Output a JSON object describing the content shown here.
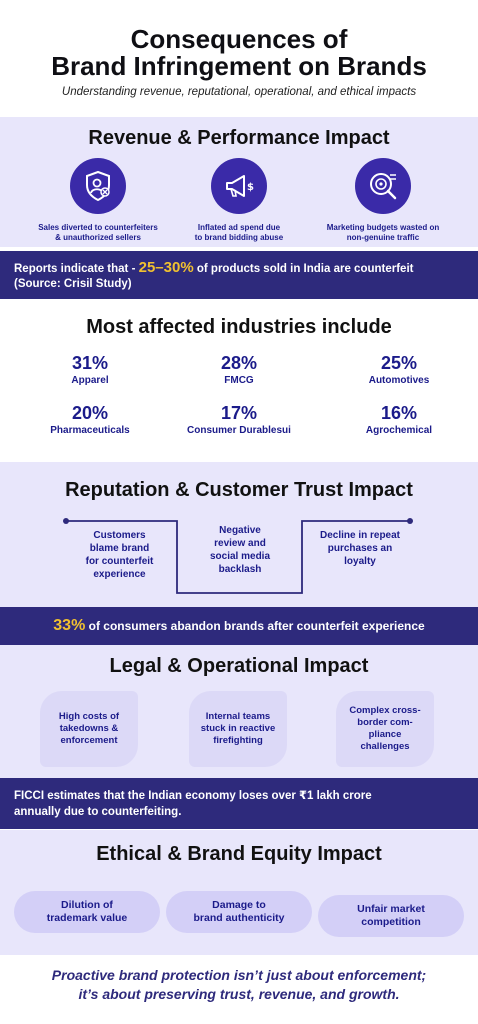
{
  "header": {
    "title_line1": "Consequences of",
    "title_line2": "Brand Infringement on Brands",
    "subtitle": "Understanding revenue, reputational, operational, and ethical impacts"
  },
  "revenue": {
    "title": "Revenue & Performance Impact",
    "items": [
      {
        "icon": "shield-user-icon",
        "caption_line1": "Sales diverted to counterfeiters",
        "caption_line2": "& unauthorized sellers"
      },
      {
        "icon": "megaphone-dollar-icon",
        "caption_line1": "Inflated ad spend due",
        "caption_line2": "to brand bidding abuse"
      },
      {
        "icon": "target-search-icon",
        "caption_line1": "Marketing budgets wasted on",
        "caption_line2": "non-genuine traffic"
      }
    ]
  },
  "crisil_banner": {
    "prefix": "Reports indicate that - ",
    "highlight": "25–30%",
    "suffix": " of products sold in India are counterfeit",
    "source": "(Source: Crisil Study)"
  },
  "industries": {
    "title": "Most affected industries include",
    "stats": [
      {
        "value": "31%",
        "label": "Apparel"
      },
      {
        "value": "28%",
        "label": "FMCG"
      },
      {
        "value": "25%",
        "label": "Automotives"
      },
      {
        "value": "20%",
        "label": "Pharmaceuticals"
      },
      {
        "value": "17%",
        "label": "Consumer Durablesui"
      },
      {
        "value": "16%",
        "label": "Agrochemical"
      }
    ]
  },
  "reputation": {
    "title": "Reputation & Customer Trust Impact",
    "items": [
      {
        "l1": "Customers",
        "l2": "blame brand",
        "l3": "for counterfeit",
        "l4": "experience"
      },
      {
        "l1": "Negative",
        "l2": "review and",
        "l3": "social media",
        "l4": "backlash"
      },
      {
        "l1": "Decline in repeat",
        "l2": "purchases an",
        "l3": "loyalty",
        "l4": ""
      }
    ]
  },
  "abandon_banner": {
    "highlight": "33%",
    "text": " of consumers abandon brands after counterfeit experience"
  },
  "legal": {
    "title": "Legal & Operational Impact",
    "items": [
      {
        "l1": "High costs of",
        "l2": "takedowns &",
        "l3": "enforcement",
        "l4": ""
      },
      {
        "l1": "Internal teams",
        "l2": "stuck in reactive",
        "l3": "firefighting",
        "l4": ""
      },
      {
        "l1": "Complex cross-",
        "l2": "border com-",
        "l3": "pliance",
        "l4": "challenges"
      }
    ]
  },
  "ficci_banner": {
    "line1": "FICCI estimates that the Indian economy loses over ₹1 lakh crore",
    "line2": "annually due to counterfeiting."
  },
  "ethical": {
    "title": "Ethical & Brand Equity Impact",
    "items": [
      {
        "l1": "Dilution of",
        "l2": "trademark value"
      },
      {
        "l1": "Damage to",
        "l2": "brand authenticity"
      },
      {
        "l1": "Unfair market",
        "l2": "competition"
      }
    ]
  },
  "footer": {
    "line1": "Proactive brand protection isn’t just about enforcement;",
    "line2": "it’s about preserving trust, revenue, and growth."
  },
  "colors": {
    "accent": "#f0c030",
    "navy": "#2e2a7c",
    "lavender": "#e8e6fb",
    "icon_bg": "#3a2aa8"
  }
}
